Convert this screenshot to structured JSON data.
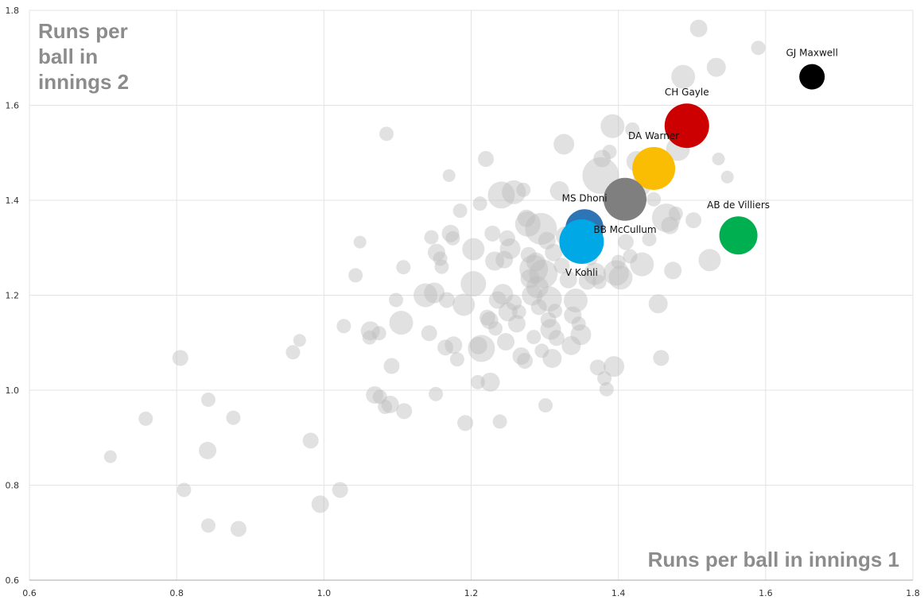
{
  "chart_data": {
    "type": "scatter",
    "title": "",
    "xlabel": "Runs per ball in innings 1",
    "ylabel_lines": [
      "Runs per",
      "ball in",
      "innings 2"
    ],
    "xlim": [
      0.6,
      1.8
    ],
    "ylim": [
      0.6,
      1.8
    ],
    "xticks": [
      "0.6",
      "0.8",
      "1.0",
      "1.2",
      "1.4",
      "1.6",
      "1.8"
    ],
    "yticks": [
      "0.6",
      "0.8",
      "1.0",
      "1.2",
      "1.4",
      "1.6",
      "1.8"
    ],
    "grid": true,
    "colors": {
      "background_points": "#bdbdbd",
      "grid": "#e3e3e3",
      "axis": "#aaaaaa"
    },
    "highlighted": [
      {
        "name": "GJ Maxwell",
        "x": 1.663,
        "y": 1.66,
        "size": 0.8,
        "color": "#000000",
        "label_pos": "above"
      },
      {
        "name": "CH Gayle",
        "x": 1.493,
        "y": 1.557,
        "size": 1.4,
        "color": "#cc0000",
        "label_pos": "above"
      },
      {
        "name": "DA Warner",
        "x": 1.448,
        "y": 1.467,
        "size": 1.35,
        "color": "#fbbc04",
        "label_pos": "above"
      },
      {
        "name": "AB de Villiers",
        "x": 1.563,
        "y": 1.326,
        "size": 1.2,
        "color": "#00b050",
        "label_pos": "above"
      },
      {
        "name": "BB McCullum",
        "x": 1.409,
        "y": 1.402,
        "size": 1.35,
        "color": "#7f7f7f",
        "label_pos": "below"
      },
      {
        "name": "MS Dhoni",
        "x": 1.354,
        "y": 1.341,
        "size": 1.2,
        "color": "#2e75b6",
        "label_pos": "above"
      },
      {
        "name": "V Kohli",
        "x": 1.35,
        "y": 1.313,
        "size": 1.4,
        "color": "#00a9e6",
        "label_pos": "below"
      }
    ],
    "others": [
      [
        0.71,
        0.86,
        0.4
      ],
      [
        0.758,
        0.94,
        0.45
      ],
      [
        0.805,
        1.068,
        0.5
      ],
      [
        0.81,
        0.79,
        0.45
      ],
      [
        0.843,
        0.98,
        0.45
      ],
      [
        0.842,
        0.873,
        0.55
      ],
      [
        0.843,
        0.715,
        0.45
      ],
      [
        0.877,
        0.942,
        0.45
      ],
      [
        0.884,
        0.708,
        0.5
      ],
      [
        0.958,
        1.08,
        0.45
      ],
      [
        0.967,
        1.105,
        0.4
      ],
      [
        0.982,
        0.894,
        0.5
      ],
      [
        0.995,
        0.76,
        0.55
      ],
      [
        1.022,
        0.79,
        0.5
      ],
      [
        1.027,
        1.135,
        0.45
      ],
      [
        1.043,
        1.242,
        0.45
      ],
      [
        1.049,
        1.312,
        0.4
      ],
      [
        1.063,
        1.125,
        0.6
      ],
      [
        1.062,
        1.111,
        0.45
      ],
      [
        1.069,
        0.99,
        0.55
      ],
      [
        1.075,
        1.12,
        0.45
      ],
      [
        1.076,
        0.986,
        0.45
      ],
      [
        1.083,
        0.965,
        0.45
      ],
      [
        1.085,
        1.54,
        0.45
      ],
      [
        1.09,
        0.97,
        0.55
      ],
      [
        1.092,
        1.051,
        0.5
      ],
      [
        1.098,
        1.19,
        0.45
      ],
      [
        1.105,
        1.142,
        0.75
      ],
      [
        1.109,
        0.956,
        0.5
      ],
      [
        1.108,
        1.259,
        0.45
      ],
      [
        1.138,
        1.2,
        0.75
      ],
      [
        1.143,
        1.12,
        0.5
      ],
      [
        1.146,
        1.322,
        0.45
      ],
      [
        1.15,
        1.205,
        0.65
      ],
      [
        1.152,
        0.992,
        0.45
      ],
      [
        1.153,
        1.29,
        0.55
      ],
      [
        1.158,
        1.277,
        0.45
      ],
      [
        1.16,
        1.26,
        0.45
      ],
      [
        1.165,
        1.09,
        0.5
      ],
      [
        1.167,
        1.19,
        0.5
      ],
      [
        1.17,
        1.452,
        0.4
      ],
      [
        1.172,
        1.33,
        0.55
      ],
      [
        1.175,
        1.32,
        0.45
      ],
      [
        1.176,
        1.095,
        0.55
      ],
      [
        1.181,
        1.065,
        0.45
      ],
      [
        1.185,
        1.378,
        0.45
      ],
      [
        1.19,
        1.18,
        0.7
      ],
      [
        1.192,
        0.931,
        0.5
      ],
      [
        1.203,
        1.297,
        0.7
      ],
      [
        1.203,
        1.224,
        0.8
      ],
      [
        1.21,
        1.094,
        0.55
      ],
      [
        1.209,
        1.017,
        0.45
      ],
      [
        1.212,
        1.393,
        0.45
      ],
      [
        1.214,
        1.088,
        0.85
      ],
      [
        1.22,
        1.487,
        0.5
      ],
      [
        1.222,
        1.153,
        0.5
      ],
      [
        1.225,
        1.147,
        0.55
      ],
      [
        1.226,
        1.017,
        0.6
      ],
      [
        1.229,
        1.33,
        0.5
      ],
      [
        1.233,
        1.13,
        0.45
      ],
      [
        1.236,
        1.19,
        0.55
      ],
      [
        1.239,
        0.934,
        0.45
      ],
      [
        1.241,
        1.411,
        0.85
      ],
      [
        1.243,
        1.202,
        0.65
      ],
      [
        1.245,
        1.275,
        0.55
      ],
      [
        1.247,
        1.102,
        0.55
      ],
      [
        1.249,
        1.32,
        0.5
      ],
      [
        1.25,
        1.165,
        0.6
      ],
      [
        1.253,
        1.298,
        0.65
      ],
      [
        1.258,
        1.417,
        0.75
      ],
      [
        1.262,
        1.14,
        0.55
      ],
      [
        1.265,
        1.165,
        0.45
      ],
      [
        1.268,
        1.072,
        0.55
      ],
      [
        1.271,
        1.422,
        0.45
      ],
      [
        1.273,
        1.062,
        0.5
      ],
      [
        1.275,
        1.362,
        0.55
      ],
      [
        1.277,
        1.35,
        0.8
      ],
      [
        1.278,
        1.285,
        0.5
      ],
      [
        1.28,
        1.235,
        0.6
      ],
      [
        1.283,
        1.2,
        0.65
      ],
      [
        1.285,
        1.112,
        0.45
      ],
      [
        1.288,
        1.27,
        0.6
      ],
      [
        1.29,
        1.217,
        0.7
      ],
      [
        1.292,
        1.175,
        0.5
      ],
      [
        1.295,
        1.34,
        1.0
      ],
      [
        1.296,
        1.083,
        0.45
      ],
      [
        1.298,
        1.245,
        0.9
      ],
      [
        1.301,
        0.968,
        0.45
      ],
      [
        1.303,
        1.315,
        0.55
      ],
      [
        1.305,
        1.148,
        0.5
      ],
      [
        1.306,
        1.192,
        0.8
      ],
      [
        1.308,
        1.128,
        0.65
      ],
      [
        1.31,
        1.067,
        0.6
      ],
      [
        1.312,
        1.29,
        0.55
      ],
      [
        1.314,
        1.167,
        0.45
      ],
      [
        1.316,
        1.11,
        0.5
      ],
      [
        1.32,
        1.42,
        0.6
      ],
      [
        1.323,
        1.262,
        0.5
      ],
      [
        1.326,
        1.518,
        0.65
      ],
      [
        1.328,
        1.325,
        0.6
      ],
      [
        1.332,
        1.233,
        0.55
      ],
      [
        1.336,
        1.094,
        0.6
      ],
      [
        1.338,
        1.158,
        0.55
      ],
      [
        1.342,
        1.189,
        0.75
      ],
      [
        1.346,
        1.14,
        0.45
      ],
      [
        1.349,
        1.117,
        0.65
      ],
      [
        1.358,
        1.23,
        0.55
      ],
      [
        1.362,
        1.278,
        0.45
      ],
      [
        1.368,
        1.245,
        0.7
      ],
      [
        1.372,
        1.048,
        0.5
      ],
      [
        1.374,
        1.228,
        0.45
      ],
      [
        1.376,
        1.452,
        1.15
      ],
      [
        1.378,
        1.488,
        0.55
      ],
      [
        1.381,
        1.025,
        0.45
      ],
      [
        1.384,
        1.002,
        0.45
      ],
      [
        1.388,
        1.502,
        0.45
      ],
      [
        1.392,
        1.556,
        0.75
      ],
      [
        1.394,
        1.05,
        0.65
      ],
      [
        1.397,
        1.247,
        0.8
      ],
      [
        1.4,
        1.27,
        0.45
      ],
      [
        1.403,
        1.237,
        0.75
      ],
      [
        1.41,
        1.312,
        0.5
      ],
      [
        1.416,
        1.282,
        0.45
      ],
      [
        1.419,
        1.549,
        0.45
      ],
      [
        1.425,
        1.482,
        0.65
      ],
      [
        1.43,
        1.43,
        0.65
      ],
      [
        1.432,
        1.265,
        0.75
      ],
      [
        1.442,
        1.318,
        0.45
      ],
      [
        1.448,
        1.402,
        0.45
      ],
      [
        1.454,
        1.182,
        0.6
      ],
      [
        1.458,
        1.068,
        0.5
      ],
      [
        1.465,
        1.363,
        0.9
      ],
      [
        1.47,
        1.347,
        0.55
      ],
      [
        1.474,
        1.252,
        0.55
      ],
      [
        1.478,
        1.372,
        0.45
      ],
      [
        1.481,
        1.508,
        0.75
      ],
      [
        1.488,
        1.66,
        0.75
      ],
      [
        1.502,
        1.358,
        0.5
      ],
      [
        1.509,
        1.762,
        0.55
      ],
      [
        1.524,
        1.274,
        0.7
      ],
      [
        1.533,
        1.68,
        0.6
      ],
      [
        1.536,
        1.487,
        0.4
      ],
      [
        1.548,
        1.449,
        0.4
      ],
      [
        1.548,
        1.32,
        0.45
      ],
      [
        1.59,
        1.721,
        0.45
      ],
      [
        1.285,
        1.255,
        0.9
      ],
      [
        1.232,
        1.272,
        0.6
      ],
      [
        1.258,
        1.185,
        0.5
      ]
    ]
  }
}
